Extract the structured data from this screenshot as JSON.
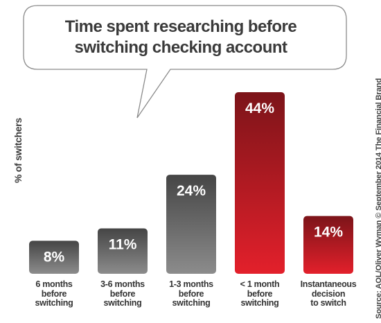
{
  "title": "Time spent researching before\nswitching checking account",
  "ylabel": "% of switchers",
  "source": "Source: AOL/Oliver Wyman © September 2014 The Financial Brand",
  "colors": {
    "gray_light": "#8c8c8c",
    "gray_dark": "#454545",
    "red_light": "#e3202b",
    "red_dark": "#7c1419"
  },
  "chart_data": {
    "type": "bar",
    "title": "Time spent researching before switching checking account",
    "ylabel": "% of switchers",
    "categories": [
      "6 months\nbefore\nswitching",
      "3-6 months\nbefore\nswitching",
      "1-3 months\nbefore\nswitching",
      "< 1 month\nbefore\nswitching",
      "Instantaneous\ndecision\nto switch"
    ],
    "values": [
      8,
      11,
      24,
      44,
      14
    ],
    "data_labels": [
      "8%",
      "11%",
      "24%",
      "44%",
      "14%"
    ],
    "bar_colors": [
      "gray",
      "gray",
      "gray",
      "red",
      "red"
    ],
    "ylim": [
      0,
      44
    ],
    "grid": false,
    "legend": "none"
  }
}
